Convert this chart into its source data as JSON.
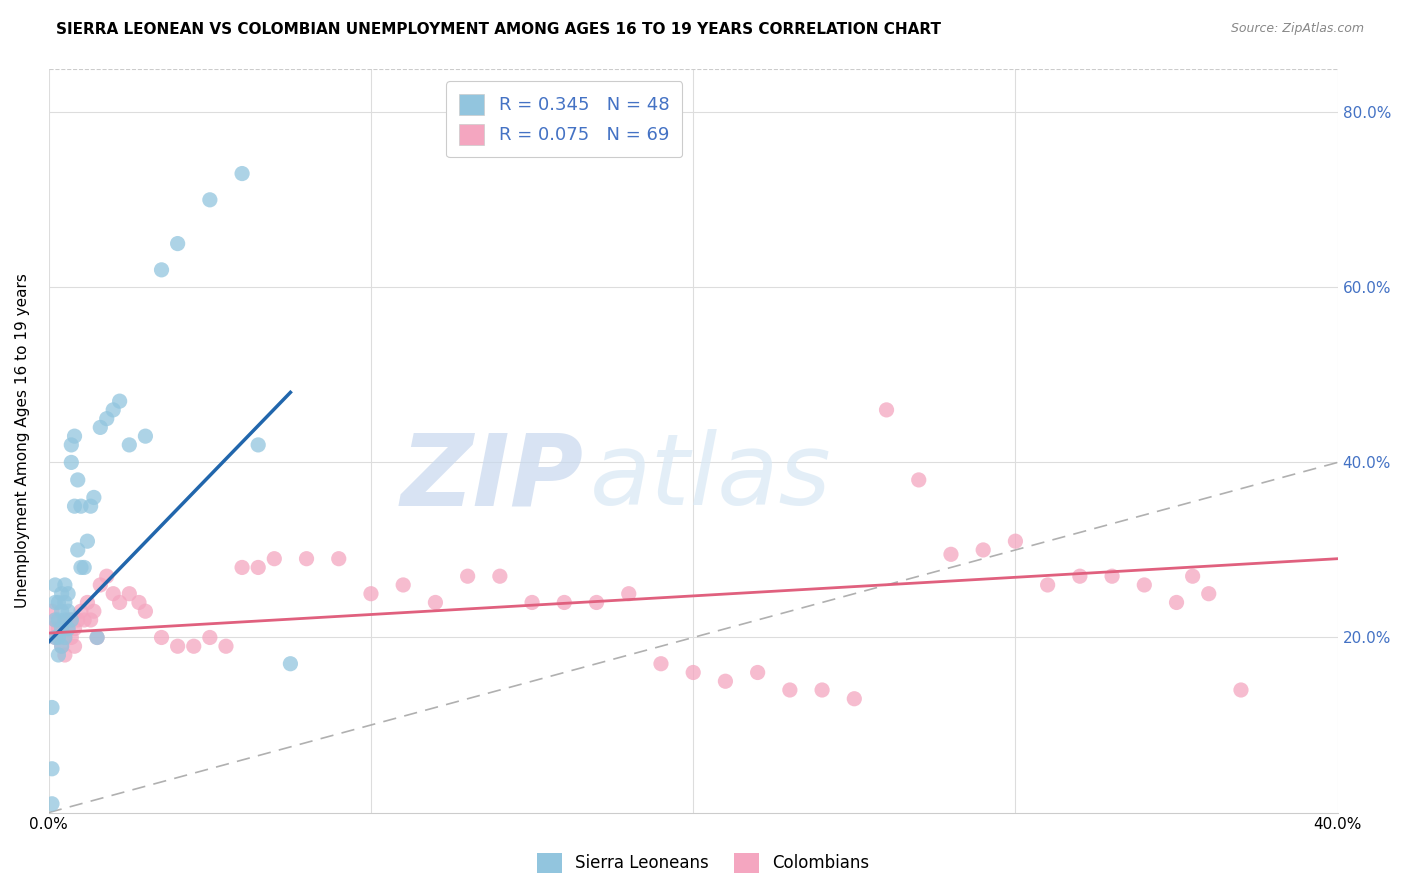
{
  "title": "SIERRA LEONEAN VS COLOMBIAN UNEMPLOYMENT AMONG AGES 16 TO 19 YEARS CORRELATION CHART",
  "source": "Source: ZipAtlas.com",
  "ylabel": "Unemployment Among Ages 16 to 19 years",
  "xlim": [
    0.0,
    0.4
  ],
  "ylim": [
    0.0,
    0.85
  ],
  "sl_color": "#92c5de",
  "co_color": "#f4a6c0",
  "sl_line_color": "#2166ac",
  "co_line_color": "#e0607e",
  "diagonal_color": "#b0b0b0",
  "watermark_zip": "ZIP",
  "watermark_atlas": "atlas",
  "title_fontsize": 11,
  "axis_fontsize": 11,
  "tick_fontsize": 11,
  "legend_fontsize": 13,
  "sl_x": [
    0.001,
    0.001,
    0.001,
    0.002,
    0.002,
    0.002,
    0.002,
    0.003,
    0.003,
    0.003,
    0.003,
    0.004,
    0.004,
    0.004,
    0.004,
    0.005,
    0.005,
    0.005,
    0.005,
    0.006,
    0.006,
    0.006,
    0.007,
    0.007,
    0.007,
    0.008,
    0.008,
    0.009,
    0.009,
    0.01,
    0.01,
    0.011,
    0.012,
    0.013,
    0.014,
    0.015,
    0.016,
    0.018,
    0.02,
    0.022,
    0.025,
    0.03,
    0.035,
    0.04,
    0.05,
    0.06,
    0.065,
    0.075
  ],
  "sl_y": [
    0.01,
    0.05,
    0.12,
    0.2,
    0.22,
    0.24,
    0.26,
    0.18,
    0.2,
    0.22,
    0.24,
    0.19,
    0.21,
    0.23,
    0.25,
    0.2,
    0.22,
    0.24,
    0.26,
    0.21,
    0.23,
    0.25,
    0.22,
    0.4,
    0.42,
    0.43,
    0.35,
    0.38,
    0.3,
    0.28,
    0.35,
    0.28,
    0.31,
    0.35,
    0.36,
    0.2,
    0.44,
    0.45,
    0.46,
    0.47,
    0.42,
    0.43,
    0.62,
    0.65,
    0.7,
    0.73,
    0.42,
    0.17
  ],
  "co_x": [
    0.001,
    0.001,
    0.002,
    0.002,
    0.003,
    0.003,
    0.004,
    0.004,
    0.005,
    0.005,
    0.006,
    0.006,
    0.007,
    0.007,
    0.008,
    0.008,
    0.009,
    0.01,
    0.011,
    0.012,
    0.013,
    0.014,
    0.015,
    0.016,
    0.018,
    0.02,
    0.022,
    0.025,
    0.028,
    0.03,
    0.035,
    0.04,
    0.045,
    0.05,
    0.055,
    0.06,
    0.065,
    0.07,
    0.08,
    0.09,
    0.1,
    0.11,
    0.12,
    0.13,
    0.14,
    0.15,
    0.16,
    0.17,
    0.18,
    0.19,
    0.2,
    0.21,
    0.22,
    0.23,
    0.24,
    0.25,
    0.26,
    0.27,
    0.28,
    0.29,
    0.3,
    0.31,
    0.32,
    0.33,
    0.34,
    0.35,
    0.355,
    0.36,
    0.37
  ],
  "co_y": [
    0.21,
    0.23,
    0.2,
    0.22,
    0.2,
    0.21,
    0.19,
    0.21,
    0.18,
    0.2,
    0.21,
    0.22,
    0.2,
    0.22,
    0.19,
    0.21,
    0.22,
    0.23,
    0.22,
    0.24,
    0.22,
    0.23,
    0.2,
    0.26,
    0.27,
    0.25,
    0.24,
    0.25,
    0.24,
    0.23,
    0.2,
    0.19,
    0.19,
    0.2,
    0.19,
    0.28,
    0.28,
    0.29,
    0.29,
    0.29,
    0.25,
    0.26,
    0.24,
    0.27,
    0.27,
    0.24,
    0.24,
    0.24,
    0.25,
    0.17,
    0.16,
    0.15,
    0.16,
    0.14,
    0.14,
    0.13,
    0.46,
    0.38,
    0.295,
    0.3,
    0.31,
    0.26,
    0.27,
    0.27,
    0.26,
    0.24,
    0.27,
    0.25,
    0.14
  ],
  "sl_line_x": [
    0.0,
    0.075
  ],
  "sl_line_y": [
    0.195,
    0.48
  ],
  "co_line_x": [
    0.0,
    0.4
  ],
  "co_line_y": [
    0.205,
    0.29
  ]
}
